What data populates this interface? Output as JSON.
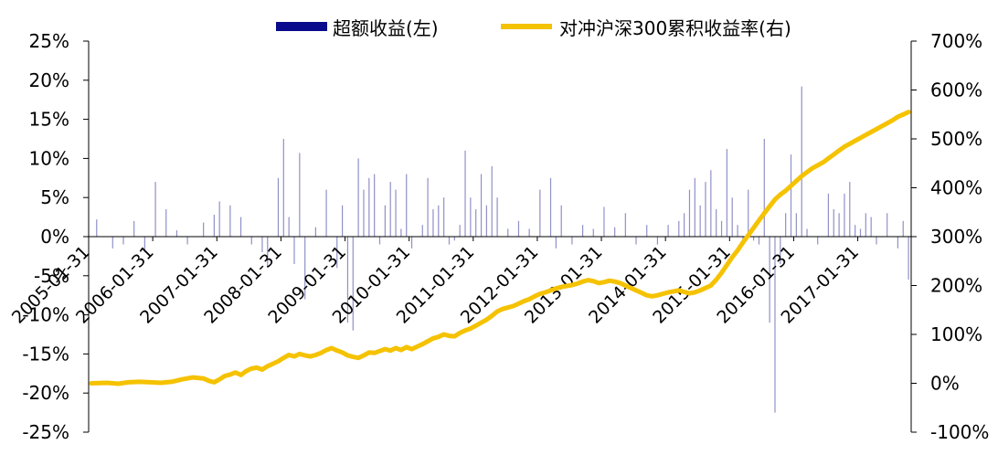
{
  "chart_data": {
    "type": "bar+line",
    "title": "",
    "legend": {
      "position": "top-center",
      "entries": [
        {
          "label": "超额收益(左)",
          "color": "#0a0a8c",
          "kind": "bar"
        },
        {
          "label": "对冲沪深300累积收益率(右)",
          "color": "#f5c200",
          "kind": "line"
        }
      ]
    },
    "left_axis": {
      "ylim": [
        -25,
        25
      ],
      "ticks": [
        25,
        20,
        15,
        10,
        5,
        0,
        -5,
        -10,
        -15,
        -20,
        -25
      ],
      "tick_labels": [
        "25%",
        "20%",
        "15%",
        "10%",
        "5%",
        "0%",
        "-5%",
        "-10%",
        "-15%",
        "-20%",
        "-25%"
      ]
    },
    "right_axis": {
      "ylim": [
        -100,
        700
      ],
      "ticks": [
        700,
        600,
        500,
        400,
        300,
        200,
        100,
        0,
        -100
      ],
      "tick_labels": [
        "700%",
        "600%",
        "500%",
        "400%",
        "300%",
        "200%",
        "100%",
        "0%",
        "-100%"
      ]
    },
    "x_axis": {
      "tick_labels": [
        "2005-01-31",
        "2006-01-31",
        "2007-01-31",
        "2008-01-31",
        "2009-01-31",
        "2010-01-31",
        "2011-01-31",
        "2012-01-31",
        "2013-01-31",
        "2014-01-31",
        "2015-01-31",
        "2016-01-31",
        "2017-01-31"
      ],
      "months": 154
    },
    "excess_return_keypoints": [
      [
        1,
        2.2
      ],
      [
        4,
        -1.5
      ],
      [
        6,
        -1
      ],
      [
        8,
        2
      ],
      [
        10,
        -2
      ],
      [
        12,
        7
      ],
      [
        14,
        3.5
      ],
      [
        16,
        0.8
      ],
      [
        18,
        -1
      ],
      [
        21,
        1.8
      ],
      [
        23,
        2.8
      ],
      [
        24,
        4.5
      ],
      [
        26,
        4
      ],
      [
        28,
        2.5
      ],
      [
        30,
        -1
      ],
      [
        32,
        -2
      ],
      [
        33,
        -4
      ],
      [
        35,
        7.5
      ],
      [
        36,
        12.5
      ],
      [
        37,
        2.5
      ],
      [
        38,
        -3.5
      ],
      [
        39,
        10.7
      ],
      [
        40,
        -8
      ],
      [
        42,
        1.2
      ],
      [
        44,
        6
      ],
      [
        46,
        -4
      ],
      [
        47,
        4
      ],
      [
        48,
        -11
      ],
      [
        49,
        -12
      ],
      [
        50,
        10
      ],
      [
        51,
        6
      ],
      [
        52,
        7.5
      ],
      [
        53,
        8
      ],
      [
        54,
        -1
      ],
      [
        55,
        4
      ],
      [
        56,
        7
      ],
      [
        57,
        6
      ],
      [
        58,
        1
      ],
      [
        59,
        8
      ],
      [
        60,
        -1.5
      ],
      [
        62,
        1.5
      ],
      [
        63,
        7.5
      ],
      [
        64,
        3.5
      ],
      [
        65,
        4
      ],
      [
        66,
        5
      ],
      [
        67,
        -1
      ],
      [
        68,
        -0.5
      ],
      [
        69,
        1.5
      ],
      [
        70,
        11
      ],
      [
        71,
        5
      ],
      [
        72,
        3.5
      ],
      [
        73,
        8
      ],
      [
        74,
        4
      ],
      [
        75,
        9
      ],
      [
        76,
        5
      ],
      [
        78,
        1
      ],
      [
        80,
        2
      ],
      [
        82,
        1
      ],
      [
        84,
        6
      ],
      [
        86,
        7.5
      ],
      [
        87,
        -1.5
      ],
      [
        88,
        4
      ],
      [
        90,
        -1
      ],
      [
        92,
        1.5
      ],
      [
        94,
        1
      ],
      [
        96,
        3.8
      ],
      [
        98,
        1.2
      ],
      [
        100,
        3
      ],
      [
        102,
        -1
      ],
      [
        104,
        1.5
      ],
      [
        106,
        -1
      ],
      [
        108,
        1.5
      ],
      [
        110,
        2
      ],
      [
        111,
        3
      ],
      [
        112,
        6
      ],
      [
        113,
        7.5
      ],
      [
        114,
        4
      ],
      [
        115,
        7
      ],
      [
        116,
        8.5
      ],
      [
        117,
        3.5
      ],
      [
        118,
        2
      ],
      [
        119,
        11.2
      ],
      [
        120,
        5
      ],
      [
        121,
        1.5
      ],
      [
        122,
        -1
      ],
      [
        123,
        6
      ],
      [
        124,
        -0.5
      ],
      [
        125,
        -1
      ],
      [
        126,
        12.5
      ],
      [
        127,
        -11
      ],
      [
        128,
        -22.5
      ],
      [
        129,
        -3.5
      ],
      [
        130,
        3
      ],
      [
        131,
        10.5
      ],
      [
        132,
        3
      ],
      [
        133,
        19.2
      ],
      [
        134,
        1
      ],
      [
        136,
        -1
      ],
      [
        138,
        5.5
      ],
      [
        139,
        3.5
      ],
      [
        140,
        3
      ],
      [
        141,
        5.5
      ],
      [
        142,
        7
      ],
      [
        143,
        1.5
      ],
      [
        144,
        1
      ],
      [
        145,
        3
      ],
      [
        146,
        2.5
      ],
      [
        147,
        -1
      ],
      [
        149,
        3
      ],
      [
        151,
        -1.5
      ],
      [
        152,
        2
      ],
      [
        153,
        -5.5
      ]
    ],
    "cumulative_return_keypoints": [
      [
        0,
        0
      ],
      [
        3,
        1
      ],
      [
        5,
        -1
      ],
      [
        7,
        2
      ],
      [
        9,
        3
      ],
      [
        11,
        2
      ],
      [
        13,
        1
      ],
      [
        15,
        3
      ],
      [
        17,
        8
      ],
      [
        19,
        12
      ],
      [
        21,
        10
      ],
      [
        22,
        5
      ],
      [
        23,
        2
      ],
      [
        24,
        8
      ],
      [
        25,
        15
      ],
      [
        26,
        18
      ],
      [
        27,
        22
      ],
      [
        28,
        17
      ],
      [
        29,
        25
      ],
      [
        30,
        30
      ],
      [
        31,
        32
      ],
      [
        32,
        28
      ],
      [
        33,
        35
      ],
      [
        34,
        40
      ],
      [
        35,
        45
      ],
      [
        36,
        52
      ],
      [
        37,
        58
      ],
      [
        38,
        55
      ],
      [
        39,
        60
      ],
      [
        40,
        57
      ],
      [
        41,
        55
      ],
      [
        42,
        58
      ],
      [
        43,
        62
      ],
      [
        44,
        68
      ],
      [
        45,
        72
      ],
      [
        46,
        67
      ],
      [
        47,
        63
      ],
      [
        48,
        57
      ],
      [
        49,
        54
      ],
      [
        50,
        52
      ],
      [
        51,
        57
      ],
      [
        52,
        63
      ],
      [
        53,
        62
      ],
      [
        54,
        66
      ],
      [
        55,
        70
      ],
      [
        56,
        67
      ],
      [
        57,
        72
      ],
      [
        58,
        68
      ],
      [
        59,
        74
      ],
      [
        60,
        70
      ],
      [
        61,
        75
      ],
      [
        62,
        80
      ],
      [
        63,
        86
      ],
      [
        64,
        92
      ],
      [
        65,
        95
      ],
      [
        66,
        100
      ],
      [
        67,
        97
      ],
      [
        68,
        96
      ],
      [
        69,
        103
      ],
      [
        70,
        108
      ],
      [
        71,
        112
      ],
      [
        72,
        118
      ],
      [
        73,
        124
      ],
      [
        74,
        130
      ],
      [
        75,
        138
      ],
      [
        76,
        147
      ],
      [
        77,
        152
      ],
      [
        78,
        155
      ],
      [
        79,
        158
      ],
      [
        80,
        163
      ],
      [
        81,
        168
      ],
      [
        82,
        172
      ],
      [
        83,
        178
      ],
      [
        84,
        183
      ],
      [
        85,
        186
      ],
      [
        86,
        190
      ],
      [
        87,
        194
      ],
      [
        88,
        197
      ],
      [
        89,
        199
      ],
      [
        90,
        201
      ],
      [
        91,
        204
      ],
      [
        92,
        208
      ],
      [
        93,
        211
      ],
      [
        94,
        209
      ],
      [
        95,
        205
      ],
      [
        96,
        207
      ],
      [
        97,
        210
      ],
      [
        98,
        208
      ],
      [
        99,
        205
      ],
      [
        100,
        200
      ],
      [
        101,
        195
      ],
      [
        102,
        190
      ],
      [
        103,
        185
      ],
      [
        104,
        180
      ],
      [
        105,
        178
      ],
      [
        106,
        180
      ],
      [
        107,
        183
      ],
      [
        108,
        186
      ],
      [
        109,
        188
      ],
      [
        110,
        190
      ],
      [
        111,
        187
      ],
      [
        112,
        184
      ],
      [
        113,
        186
      ],
      [
        114,
        190
      ],
      [
        115,
        195
      ],
      [
        116,
        200
      ],
      [
        117,
        212
      ],
      [
        118,
        226
      ],
      [
        119,
        242
      ],
      [
        120,
        258
      ],
      [
        121,
        272
      ],
      [
        122,
        288
      ],
      [
        123,
        303
      ],
      [
        124,
        318
      ],
      [
        125,
        333
      ],
      [
        126,
        348
      ],
      [
        127,
        362
      ],
      [
        128,
        376
      ],
      [
        129,
        386
      ],
      [
        130,
        394
      ],
      [
        131,
        404
      ],
      [
        132,
        414
      ],
      [
        133,
        424
      ],
      [
        134,
        432
      ],
      [
        135,
        440
      ],
      [
        136,
        446
      ],
      [
        137,
        452
      ],
      [
        138,
        460
      ],
      [
        139,
        468
      ],
      [
        140,
        476
      ],
      [
        141,
        484
      ],
      [
        142,
        490
      ],
      [
        143,
        496
      ],
      [
        144,
        502
      ],
      [
        145,
        508
      ],
      [
        146,
        514
      ],
      [
        147,
        520
      ],
      [
        148,
        526
      ],
      [
        149,
        532
      ],
      [
        150,
        538
      ],
      [
        151,
        545
      ],
      [
        152,
        550
      ],
      [
        153,
        555
      ]
    ]
  }
}
